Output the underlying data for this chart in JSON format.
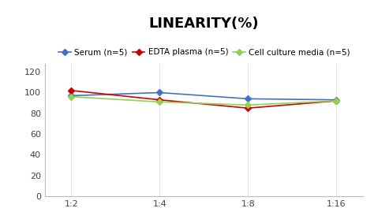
{
  "title": "LINEARITY(%)",
  "x_labels": [
    "1:2",
    "1:4",
    "1:8",
    "1:16"
  ],
  "series": [
    {
      "label": "Serum (n=5)",
      "values": [
        97,
        100,
        94,
        93
      ],
      "color": "#4472C4",
      "marker": "D"
    },
    {
      "label": "EDTA plasma (n=5)",
      "values": [
        102,
        93,
        85,
        92
      ],
      "color": "#CC0000",
      "marker": "D"
    },
    {
      "label": "Cell culture media (n=5)",
      "values": [
        96,
        91,
        88,
        92
      ],
      "color": "#92D050",
      "marker": "D"
    }
  ],
  "ylim": [
    0,
    128
  ],
  "yticks": [
    0,
    20,
    40,
    60,
    80,
    100,
    120
  ],
  "title_fontsize": 13,
  "legend_fontsize": 7.5,
  "tick_fontsize": 8,
  "background_color": "#ffffff"
}
